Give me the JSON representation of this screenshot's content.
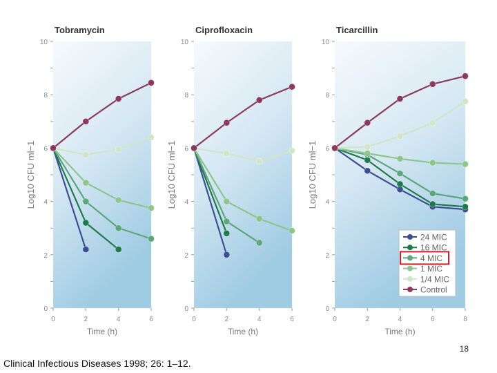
{
  "page_number": "18",
  "citation": "Clinical Infectious Diseases 1998; 26: 1–12.",
  "series_styles": {
    "24 MIC": "#3b4f90",
    "16 MIC": "#1f7a4b",
    "4 MIC": "#5ca67c",
    "1 MIC": "#8ec58d",
    "1/4 MIC": "#cfe7c6",
    "Control": "#8c3a5c"
  },
  "legend": {
    "entries": [
      "24 MIC",
      "16 MIC",
      "4 MIC",
      "1 MIC",
      "1/4 MIC",
      "Control"
    ],
    "highlighted": "4 MIC",
    "highlight_color": "#d0202a",
    "placement": "bottom-right of third panel"
  },
  "chart_data": [
    {
      "type": "line",
      "title": "Tobramycin",
      "xlabel": "Time (h)",
      "ylabel": "Log10 CFU ml−1",
      "xlim": [
        0,
        6
      ],
      "ylim": [
        0,
        10
      ],
      "xticks": [
        0,
        2,
        4,
        6
      ],
      "yticks": [
        0,
        2,
        4,
        6,
        8,
        10
      ],
      "series": [
        {
          "name": "Control",
          "x": [
            0,
            2,
            4,
            6
          ],
          "y": [
            6,
            7.0,
            7.85,
            8.45
          ]
        },
        {
          "name": "1/4 MIC",
          "x": [
            0,
            2,
            4,
            6
          ],
          "y": [
            6,
            5.75,
            5.95,
            6.4
          ]
        },
        {
          "name": "1 MIC",
          "x": [
            0,
            2,
            4,
            6
          ],
          "y": [
            6,
            4.7,
            4.05,
            3.75
          ]
        },
        {
          "name": "4 MIC",
          "x": [
            0,
            2,
            4,
            6
          ],
          "y": [
            6,
            4.0,
            3.0,
            2.6
          ]
        },
        {
          "name": "16 MIC",
          "x": [
            0,
            2,
            4
          ],
          "y": [
            6,
            3.2,
            2.2
          ]
        },
        {
          "name": "24 MIC",
          "x": [
            0,
            2
          ],
          "y": [
            6,
            2.2
          ]
        }
      ]
    },
    {
      "type": "line",
      "title": "Ciprofloxacin",
      "xlabel": "Time (h)",
      "ylabel": "Log10 CFU ml−1",
      "xlim": [
        0,
        6
      ],
      "ylim": [
        0,
        10
      ],
      "xticks": [
        0,
        2,
        4,
        6
      ],
      "yticks": [
        0,
        2,
        4,
        6,
        8,
        10
      ],
      "series": [
        {
          "name": "Control",
          "x": [
            0,
            2,
            4,
            6
          ],
          "y": [
            6,
            6.95,
            7.8,
            8.3
          ]
        },
        {
          "name": "1/4 MIC",
          "x": [
            0,
            2,
            4,
            6
          ],
          "y": [
            6,
            5.8,
            5.5,
            5.9
          ]
        },
        {
          "name": "1 MIC",
          "x": [
            0,
            2,
            4,
            6
          ],
          "y": [
            6,
            4.0,
            3.35,
            2.9
          ]
        },
        {
          "name": "4 MIC",
          "x": [
            0,
            2,
            4
          ],
          "y": [
            6,
            3.25,
            2.45
          ]
        },
        {
          "name": "16 MIC",
          "x": [
            0,
            2
          ],
          "y": [
            6,
            2.8
          ]
        },
        {
          "name": "24 MIC",
          "x": [
            0,
            2
          ],
          "y": [
            6,
            2.0
          ]
        }
      ]
    },
    {
      "type": "line",
      "title": "Ticarcillin",
      "xlabel": "Time (h)",
      "ylabel": "Log10 CFU ml−1",
      "xlim": [
        0,
        8
      ],
      "ylim": [
        0,
        10
      ],
      "xticks": [
        0,
        2,
        4,
        6,
        8
      ],
      "yticks": [
        0,
        2,
        4,
        6,
        8,
        10
      ],
      "series": [
        {
          "name": "Control",
          "x": [
            0,
            2,
            4,
            6,
            8
          ],
          "y": [
            6,
            6.95,
            7.85,
            8.4,
            8.7
          ]
        },
        {
          "name": "1/4 MIC",
          "x": [
            0,
            2,
            4,
            6,
            8
          ],
          "y": [
            6,
            6.05,
            6.45,
            6.95,
            7.75
          ]
        },
        {
          "name": "1 MIC",
          "x": [
            0,
            2,
            4,
            6,
            8
          ],
          "y": [
            6,
            5.8,
            5.6,
            5.45,
            5.4
          ]
        },
        {
          "name": "4 MIC",
          "x": [
            0,
            2,
            4,
            6,
            8
          ],
          "y": [
            6,
            5.75,
            5.05,
            4.3,
            4.1
          ]
        },
        {
          "name": "16 MIC",
          "x": [
            0,
            2,
            4,
            6,
            8
          ],
          "y": [
            6,
            5.55,
            4.65,
            3.9,
            3.8
          ]
        },
        {
          "name": "24 MIC",
          "x": [
            0,
            2,
            4,
            6,
            8
          ],
          "y": [
            6,
            5.15,
            4.45,
            3.8,
            3.7
          ]
        }
      ]
    }
  ]
}
